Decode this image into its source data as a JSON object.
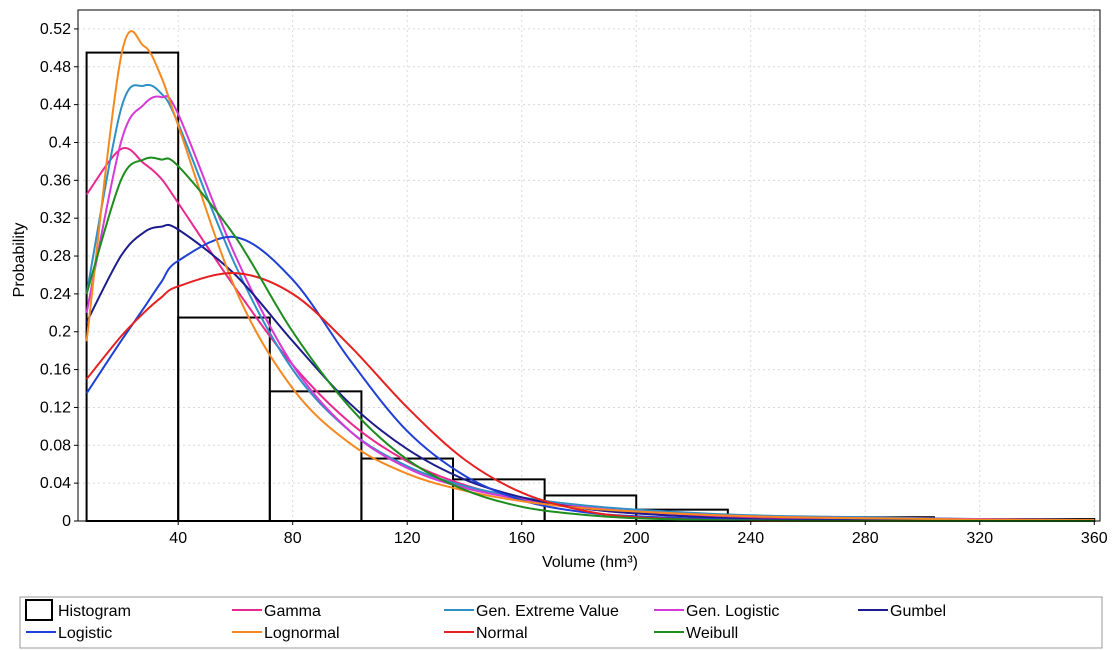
{
  "chart_data": {
    "type": "line",
    "title": "",
    "xlabel": "Volume (hm³)",
    "ylabel": "Probability",
    "xlim": [
      5,
      362
    ],
    "ylim": [
      0,
      0.54
    ],
    "x_ticks": [
      "40",
      "80",
      "120",
      "160",
      "200",
      "240",
      "280",
      "320",
      "360"
    ],
    "x_tick_values": [
      40,
      80,
      120,
      160,
      200,
      240,
      280,
      320,
      360
    ],
    "y_ticks": [
      "0",
      "0.04",
      "0.08",
      "0.12",
      "0.16",
      "0.2",
      "0.24",
      "0.28",
      "0.32",
      "0.36",
      "0.4",
      "0.44",
      "0.48",
      "0.52"
    ],
    "y_tick_values": [
      0,
      0.04,
      0.08,
      0.12,
      0.16,
      0.2,
      0.24,
      0.28,
      0.32,
      0.36,
      0.4,
      0.44,
      0.48,
      0.52
    ],
    "grid": true,
    "legend_position": "bottom",
    "histogram": {
      "name": "Histogram",
      "color": "#000000",
      "bins": [
        {
          "x0": 8,
          "x1": 40,
          "value": 0.495
        },
        {
          "x0": 40,
          "x1": 72,
          "value": 0.215
        },
        {
          "x0": 72,
          "x1": 104,
          "value": 0.137
        },
        {
          "x0": 104,
          "x1": 136,
          "value": 0.066
        },
        {
          "x0": 136,
          "x1": 168,
          "value": 0.044
        },
        {
          "x0": 168,
          "x1": 200,
          "value": 0.027
        },
        {
          "x0": 200,
          "x1": 232,
          "value": 0.012
        },
        {
          "x0": 232,
          "x1": 304,
          "value": 0.004
        },
        {
          "x0": 304,
          "x1": 360,
          "value": 0.002
        }
      ]
    },
    "x": [
      8,
      20,
      28,
      34,
      40,
      60,
      80,
      100,
      120,
      140,
      160,
      180,
      200,
      240,
      280,
      320,
      360
    ],
    "series": [
      {
        "name": "Gamma",
        "color": "#e8288e",
        "values": [
          0.345,
          0.393,
          0.378,
          0.362,
          0.336,
          0.246,
          0.165,
          0.104,
          0.063,
          0.038,
          0.023,
          0.014,
          0.008,
          0.003,
          0.001,
          0.0005,
          0.0003
        ]
      },
      {
        "name": "Gen. Extreme Value",
        "color": "#2f8fc6",
        "values": [
          0.24,
          0.435,
          0.46,
          0.452,
          0.42,
          0.27,
          0.16,
          0.095,
          0.058,
          0.037,
          0.025,
          0.017,
          0.012,
          0.006,
          0.004,
          0.002,
          0.001
        ]
      },
      {
        "name": "Gen. Logistic",
        "color": "#d63ad6",
        "values": [
          0.22,
          0.4,
          0.44,
          0.448,
          0.43,
          0.28,
          0.165,
          0.095,
          0.056,
          0.035,
          0.023,
          0.015,
          0.01,
          0.005,
          0.003,
          0.002,
          0.001
        ]
      },
      {
        "name": "Gumbel",
        "color": "#1c1c8c",
        "values": [
          0.21,
          0.28,
          0.305,
          0.311,
          0.308,
          0.26,
          0.19,
          0.124,
          0.076,
          0.044,
          0.025,
          0.014,
          0.008,
          0.002,
          0.001,
          0.0003,
          0.0001
        ]
      },
      {
        "name": "Logistic",
        "color": "#1f3fd6",
        "values": [
          0.135,
          0.19,
          0.225,
          0.252,
          0.275,
          0.3,
          0.255,
          0.17,
          0.095,
          0.048,
          0.022,
          0.01,
          0.005,
          0.001,
          0.0002,
          0.0001,
          0
        ]
      },
      {
        "name": "Lognormal",
        "color": "#f5891f",
        "values": [
          0.19,
          0.49,
          0.502,
          0.47,
          0.418,
          0.245,
          0.14,
          0.082,
          0.05,
          0.032,
          0.021,
          0.014,
          0.01,
          0.005,
          0.003,
          0.0015,
          0.001
        ]
      },
      {
        "name": "Normal",
        "color": "#e62020",
        "values": [
          0.15,
          0.195,
          0.22,
          0.236,
          0.248,
          0.262,
          0.24,
          0.185,
          0.12,
          0.065,
          0.03,
          0.012,
          0.004,
          0.0003,
          0,
          0,
          0
        ]
      },
      {
        "name": "Weibull",
        "color": "#1e8c1e",
        "values": [
          0.24,
          0.36,
          0.382,
          0.382,
          0.375,
          0.3,
          0.2,
          0.12,
          0.065,
          0.033,
          0.015,
          0.007,
          0.003,
          0.0005,
          0.0001,
          0,
          0
        ]
      }
    ]
  }
}
